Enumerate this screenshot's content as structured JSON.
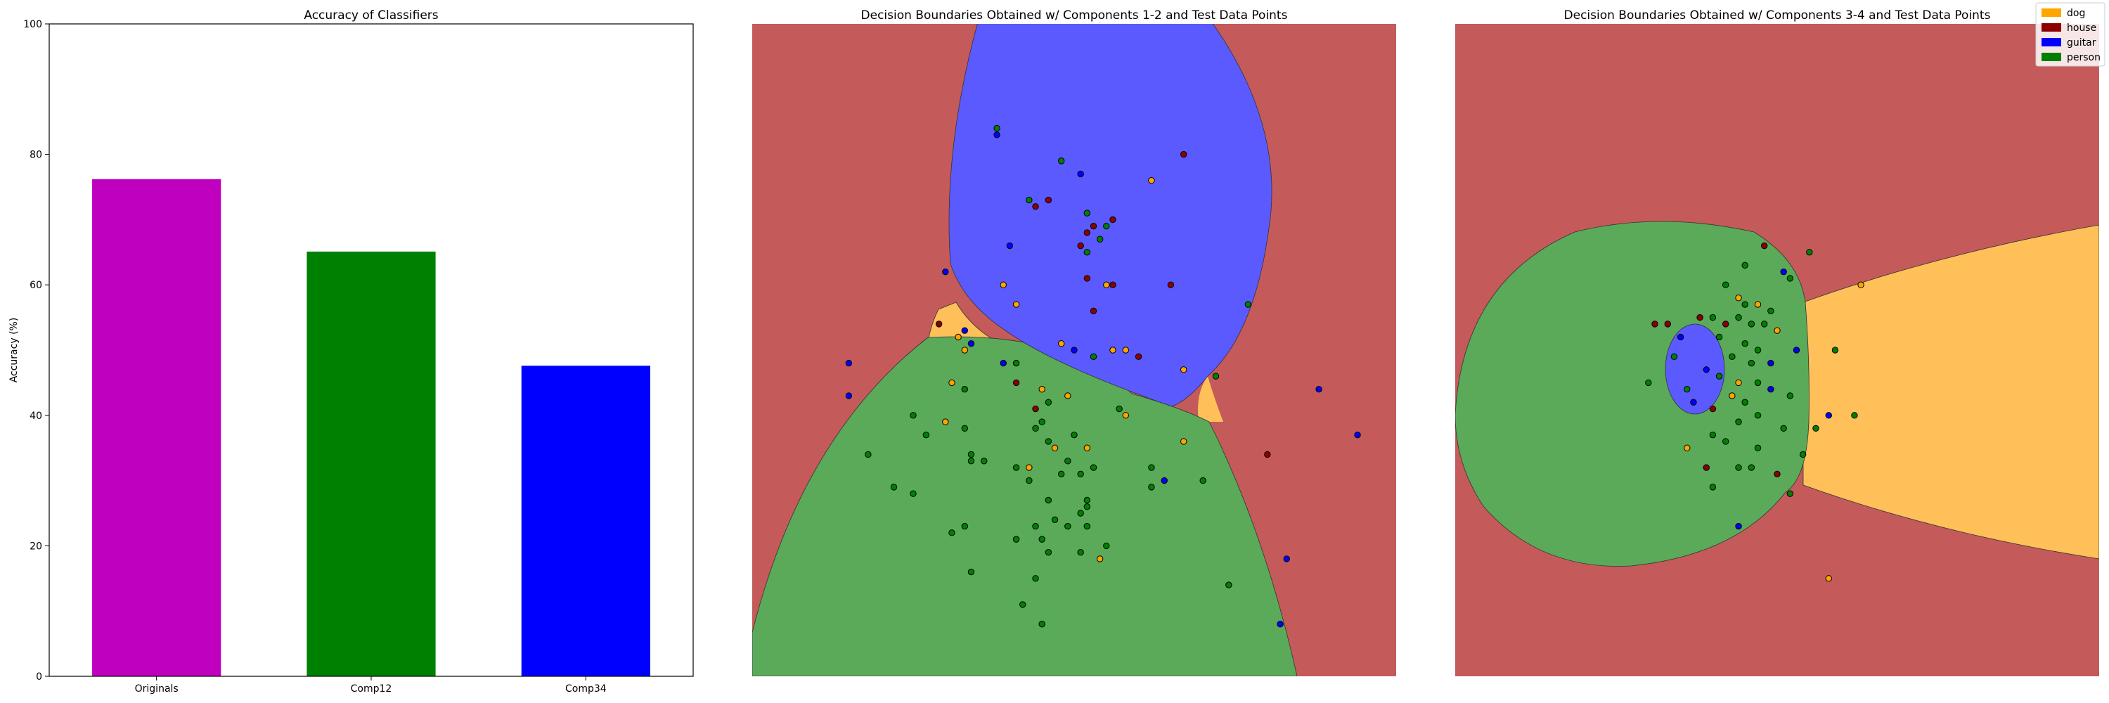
{
  "chart_data": [
    {
      "type": "bar",
      "title": "Accuracy of Classifiers",
      "ylabel": "Accuracy (%)",
      "xlabel": "",
      "ylim": [
        0,
        100
      ],
      "yticks": [
        "0",
        "20",
        "40",
        "60",
        "80",
        "100"
      ],
      "categories": [
        "Originals",
        "Comp12",
        "Comp34"
      ],
      "values": [
        76.2,
        65.1,
        47.6
      ],
      "colors": [
        "#bf00bf",
        "#008000",
        "#0000ff"
      ]
    },
    {
      "type": "scatter",
      "title": "Decision Boundaries Obtained w/ Components 1-2 and Test Data Points",
      "region_colors": {
        "dog": "#ffc05a",
        "house": "#c55a5a",
        "guitar": "#5a5aff",
        "person": "#5aaa5a"
      },
      "point_colors": {
        "dog": "#ffa500",
        "house": "#8b0000",
        "guitar": "#0000ff",
        "person": "#008000"
      },
      "points": [
        {
          "x": 0.38,
          "y": 0.17,
          "label": "guitar"
        },
        {
          "x": 0.38,
          "y": 0.16,
          "label": "person"
        },
        {
          "x": 0.48,
          "y": 0.21,
          "label": "person"
        },
        {
          "x": 0.51,
          "y": 0.23,
          "label": "guitar"
        },
        {
          "x": 0.67,
          "y": 0.2,
          "label": "house"
        },
        {
          "x": 0.62,
          "y": 0.24,
          "label": "dog"
        },
        {
          "x": 0.43,
          "y": 0.27,
          "label": "person"
        },
        {
          "x": 0.44,
          "y": 0.28,
          "label": "house"
        },
        {
          "x": 0.46,
          "y": 0.27,
          "label": "house"
        },
        {
          "x": 0.52,
          "y": 0.29,
          "label": "person"
        },
        {
          "x": 0.56,
          "y": 0.3,
          "label": "house"
        },
        {
          "x": 0.53,
          "y": 0.31,
          "label": "house"
        },
        {
          "x": 0.55,
          "y": 0.31,
          "label": "person"
        },
        {
          "x": 0.52,
          "y": 0.32,
          "label": "house"
        },
        {
          "x": 0.54,
          "y": 0.33,
          "label": "person"
        },
        {
          "x": 0.51,
          "y": 0.34,
          "label": "house"
        },
        {
          "x": 0.4,
          "y": 0.34,
          "label": "guitar"
        },
        {
          "x": 0.52,
          "y": 0.35,
          "label": "person"
        },
        {
          "x": 0.3,
          "y": 0.38,
          "label": "guitar"
        },
        {
          "x": 0.39,
          "y": 0.4,
          "label": "dog"
        },
        {
          "x": 0.52,
          "y": 0.39,
          "label": "house"
        },
        {
          "x": 0.55,
          "y": 0.4,
          "label": "dog"
        },
        {
          "x": 0.56,
          "y": 0.4,
          "label": "house"
        },
        {
          "x": 0.65,
          "y": 0.4,
          "label": "house"
        },
        {
          "x": 0.41,
          "y": 0.43,
          "label": "dog"
        },
        {
          "x": 0.53,
          "y": 0.44,
          "label": "house"
        },
        {
          "x": 0.77,
          "y": 0.43,
          "label": "person"
        },
        {
          "x": 0.29,
          "y": 0.46,
          "label": "house"
        },
        {
          "x": 0.33,
          "y": 0.47,
          "label": "guitar"
        },
        {
          "x": 0.32,
          "y": 0.48,
          "label": "dog"
        },
        {
          "x": 0.34,
          "y": 0.49,
          "label": "guitar"
        },
        {
          "x": 0.48,
          "y": 0.49,
          "label": "dog"
        },
        {
          "x": 0.56,
          "y": 0.5,
          "label": "dog"
        },
        {
          "x": 0.58,
          "y": 0.5,
          "label": "dog"
        },
        {
          "x": 0.6,
          "y": 0.51,
          "label": "house"
        },
        {
          "x": 0.39,
          "y": 0.52,
          "label": "guitar"
        },
        {
          "x": 0.33,
          "y": 0.5,
          "label": "dog"
        },
        {
          "x": 0.5,
          "y": 0.5,
          "label": "guitar"
        },
        {
          "x": 0.53,
          "y": 0.51,
          "label": "person"
        },
        {
          "x": 0.15,
          "y": 0.52,
          "label": "guitar"
        },
        {
          "x": 0.41,
          "y": 0.52,
          "label": "person"
        },
        {
          "x": 0.41,
          "y": 0.55,
          "label": "house"
        },
        {
          "x": 0.67,
          "y": 0.53,
          "label": "dog"
        },
        {
          "x": 0.72,
          "y": 0.54,
          "label": "person"
        },
        {
          "x": 0.31,
          "y": 0.55,
          "label": "dog"
        },
        {
          "x": 0.33,
          "y": 0.56,
          "label": "person"
        },
        {
          "x": 0.45,
          "y": 0.56,
          "label": "dog"
        },
        {
          "x": 0.49,
          "y": 0.57,
          "label": "dog"
        },
        {
          "x": 0.88,
          "y": 0.56,
          "label": "guitar"
        },
        {
          "x": 0.15,
          "y": 0.57,
          "label": "guitar"
        },
        {
          "x": 0.46,
          "y": 0.58,
          "label": "person"
        },
        {
          "x": 0.57,
          "y": 0.59,
          "label": "person"
        },
        {
          "x": 0.25,
          "y": 0.6,
          "label": "person"
        },
        {
          "x": 0.3,
          "y": 0.61,
          "label": "dog"
        },
        {
          "x": 0.44,
          "y": 0.59,
          "label": "house"
        },
        {
          "x": 0.58,
          "y": 0.6,
          "label": "dog"
        },
        {
          "x": 0.33,
          "y": 0.62,
          "label": "person"
        },
        {
          "x": 0.44,
          "y": 0.62,
          "label": "person"
        },
        {
          "x": 0.45,
          "y": 0.61,
          "label": "person"
        },
        {
          "x": 0.27,
          "y": 0.63,
          "label": "person"
        },
        {
          "x": 0.5,
          "y": 0.63,
          "label": "person"
        },
        {
          "x": 0.46,
          "y": 0.64,
          "label": "person"
        },
        {
          "x": 0.94,
          "y": 0.63,
          "label": "guitar"
        },
        {
          "x": 0.47,
          "y": 0.65,
          "label": "dog"
        },
        {
          "x": 0.52,
          "y": 0.65,
          "label": "dog"
        },
        {
          "x": 0.67,
          "y": 0.64,
          "label": "dog"
        },
        {
          "x": 0.8,
          "y": 0.66,
          "label": "house"
        },
        {
          "x": 0.18,
          "y": 0.66,
          "label": "person"
        },
        {
          "x": 0.34,
          "y": 0.66,
          "label": "person"
        },
        {
          "x": 0.34,
          "y": 0.67,
          "label": "person"
        },
        {
          "x": 0.36,
          "y": 0.67,
          "label": "person"
        },
        {
          "x": 0.49,
          "y": 0.67,
          "label": "person"
        },
        {
          "x": 0.41,
          "y": 0.68,
          "label": "person"
        },
        {
          "x": 0.43,
          "y": 0.68,
          "label": "dog"
        },
        {
          "x": 0.53,
          "y": 0.68,
          "label": "person"
        },
        {
          "x": 0.62,
          "y": 0.68,
          "label": "person"
        },
        {
          "x": 0.48,
          "y": 0.69,
          "label": "person"
        },
        {
          "x": 0.51,
          "y": 0.69,
          "label": "person"
        },
        {
          "x": 0.43,
          "y": 0.7,
          "label": "person"
        },
        {
          "x": 0.64,
          "y": 0.7,
          "label": "guitar"
        },
        {
          "x": 0.7,
          "y": 0.7,
          "label": "person"
        },
        {
          "x": 0.22,
          "y": 0.71,
          "label": "person"
        },
        {
          "x": 0.25,
          "y": 0.72,
          "label": "person"
        },
        {
          "x": 0.62,
          "y": 0.71,
          "label": "person"
        },
        {
          "x": 0.46,
          "y": 0.73,
          "label": "person"
        },
        {
          "x": 0.52,
          "y": 0.73,
          "label": "person"
        },
        {
          "x": 0.52,
          "y": 0.74,
          "label": "person"
        },
        {
          "x": 0.51,
          "y": 0.75,
          "label": "person"
        },
        {
          "x": 0.47,
          "y": 0.76,
          "label": "person"
        },
        {
          "x": 0.33,
          "y": 0.77,
          "label": "person"
        },
        {
          "x": 0.52,
          "y": 0.77,
          "label": "person"
        },
        {
          "x": 0.44,
          "y": 0.77,
          "label": "person"
        },
        {
          "x": 0.49,
          "y": 0.77,
          "label": "person"
        },
        {
          "x": 0.31,
          "y": 0.78,
          "label": "person"
        },
        {
          "x": 0.41,
          "y": 0.79,
          "label": "person"
        },
        {
          "x": 0.45,
          "y": 0.79,
          "label": "person"
        },
        {
          "x": 0.55,
          "y": 0.8,
          "label": "person"
        },
        {
          "x": 0.46,
          "y": 0.81,
          "label": "person"
        },
        {
          "x": 0.51,
          "y": 0.81,
          "label": "person"
        },
        {
          "x": 0.54,
          "y": 0.82,
          "label": "dog"
        },
        {
          "x": 0.83,
          "y": 0.82,
          "label": "guitar"
        },
        {
          "x": 0.34,
          "y": 0.84,
          "label": "person"
        },
        {
          "x": 0.44,
          "y": 0.85,
          "label": "person"
        },
        {
          "x": 0.74,
          "y": 0.86,
          "label": "person"
        },
        {
          "x": 0.42,
          "y": 0.89,
          "label": "person"
        },
        {
          "x": 0.45,
          "y": 0.92,
          "label": "person"
        },
        {
          "x": 0.82,
          "y": 0.92,
          "label": "guitar"
        }
      ]
    },
    {
      "type": "scatter",
      "title": "Decision Boundaries Obtained w/ Components 3-4 and Test Data Points",
      "legend": {
        "position": "top-right",
        "entries": [
          "dog",
          "house",
          "guitar",
          "person"
        ]
      },
      "region_colors": {
        "dog": "#ffc05a",
        "house": "#c55a5a",
        "guitar": "#5a5aff",
        "person": "#5aaa5a"
      },
      "point_colors": {
        "dog": "#ffa500",
        "house": "#8b0000",
        "guitar": "#0000ff",
        "person": "#008000"
      },
      "points": [
        {
          "x": 0.48,
          "y": 0.34,
          "label": "house"
        },
        {
          "x": 0.55,
          "y": 0.35,
          "label": "person"
        },
        {
          "x": 0.45,
          "y": 0.37,
          "label": "person"
        },
        {
          "x": 0.51,
          "y": 0.38,
          "label": "guitar"
        },
        {
          "x": 0.52,
          "y": 0.39,
          "label": "person"
        },
        {
          "x": 0.63,
          "y": 0.4,
          "label": "dog"
        },
        {
          "x": 0.42,
          "y": 0.4,
          "label": "person"
        },
        {
          "x": 0.44,
          "y": 0.42,
          "label": "dog"
        },
        {
          "x": 0.45,
          "y": 0.43,
          "label": "person"
        },
        {
          "x": 0.47,
          "y": 0.43,
          "label": "dog"
        },
        {
          "x": 0.49,
          "y": 0.44,
          "label": "person"
        },
        {
          "x": 0.38,
          "y": 0.45,
          "label": "house"
        },
        {
          "x": 0.4,
          "y": 0.45,
          "label": "person"
        },
        {
          "x": 0.42,
          "y": 0.46,
          "label": "house"
        },
        {
          "x": 0.44,
          "y": 0.45,
          "label": "person"
        },
        {
          "x": 0.46,
          "y": 0.46,
          "label": "person"
        },
        {
          "x": 0.48,
          "y": 0.46,
          "label": "person"
        },
        {
          "x": 0.5,
          "y": 0.47,
          "label": "dog"
        },
        {
          "x": 0.31,
          "y": 0.46,
          "label": "house"
        },
        {
          "x": 0.33,
          "y": 0.46,
          "label": "house"
        },
        {
          "x": 0.35,
          "y": 0.48,
          "label": "guitar"
        },
        {
          "x": 0.41,
          "y": 0.48,
          "label": "person"
        },
        {
          "x": 0.45,
          "y": 0.49,
          "label": "person"
        },
        {
          "x": 0.47,
          "y": 0.5,
          "label": "person"
        },
        {
          "x": 0.53,
          "y": 0.5,
          "label": "guitar"
        },
        {
          "x": 0.59,
          "y": 0.5,
          "label": "person"
        },
        {
          "x": 0.34,
          "y": 0.51,
          "label": "person"
        },
        {
          "x": 0.43,
          "y": 0.51,
          "label": "person"
        },
        {
          "x": 0.46,
          "y": 0.52,
          "label": "person"
        },
        {
          "x": 0.49,
          "y": 0.52,
          "label": "guitar"
        },
        {
          "x": 0.39,
          "y": 0.53,
          "label": "guitar"
        },
        {
          "x": 0.41,
          "y": 0.54,
          "label": "person"
        },
        {
          "x": 0.44,
          "y": 0.55,
          "label": "dog"
        },
        {
          "x": 0.47,
          "y": 0.55,
          "label": "person"
        },
        {
          "x": 0.3,
          "y": 0.55,
          "label": "person"
        },
        {
          "x": 0.36,
          "y": 0.56,
          "label": "person"
        },
        {
          "x": 0.49,
          "y": 0.56,
          "label": "guitar"
        },
        {
          "x": 0.52,
          "y": 0.57,
          "label": "person"
        },
        {
          "x": 0.43,
          "y": 0.57,
          "label": "dog"
        },
        {
          "x": 0.45,
          "y": 0.58,
          "label": "person"
        },
        {
          "x": 0.37,
          "y": 0.58,
          "label": "guitar"
        },
        {
          "x": 0.4,
          "y": 0.59,
          "label": "house"
        },
        {
          "x": 0.47,
          "y": 0.6,
          "label": "person"
        },
        {
          "x": 0.62,
          "y": 0.6,
          "label": "person"
        },
        {
          "x": 0.58,
          "y": 0.6,
          "label": "guitar"
        },
        {
          "x": 0.44,
          "y": 0.61,
          "label": "person"
        },
        {
          "x": 0.51,
          "y": 0.62,
          "label": "person"
        },
        {
          "x": 0.56,
          "y": 0.62,
          "label": "person"
        },
        {
          "x": 0.4,
          "y": 0.63,
          "label": "person"
        },
        {
          "x": 0.42,
          "y": 0.64,
          "label": "person"
        },
        {
          "x": 0.47,
          "y": 0.65,
          "label": "person"
        },
        {
          "x": 0.36,
          "y": 0.65,
          "label": "dog"
        },
        {
          "x": 0.54,
          "y": 0.66,
          "label": "person"
        },
        {
          "x": 0.39,
          "y": 0.68,
          "label": "house"
        },
        {
          "x": 0.44,
          "y": 0.68,
          "label": "person"
        },
        {
          "x": 0.46,
          "y": 0.68,
          "label": "person"
        },
        {
          "x": 0.5,
          "y": 0.69,
          "label": "house"
        },
        {
          "x": 0.4,
          "y": 0.71,
          "label": "person"
        },
        {
          "x": 0.52,
          "y": 0.72,
          "label": "person"
        },
        {
          "x": 0.44,
          "y": 0.77,
          "label": "guitar"
        },
        {
          "x": 0.58,
          "y": 0.85,
          "label": "dog"
        }
      ]
    }
  ],
  "legend_labels": [
    "dog",
    "house",
    "guitar",
    "person"
  ]
}
